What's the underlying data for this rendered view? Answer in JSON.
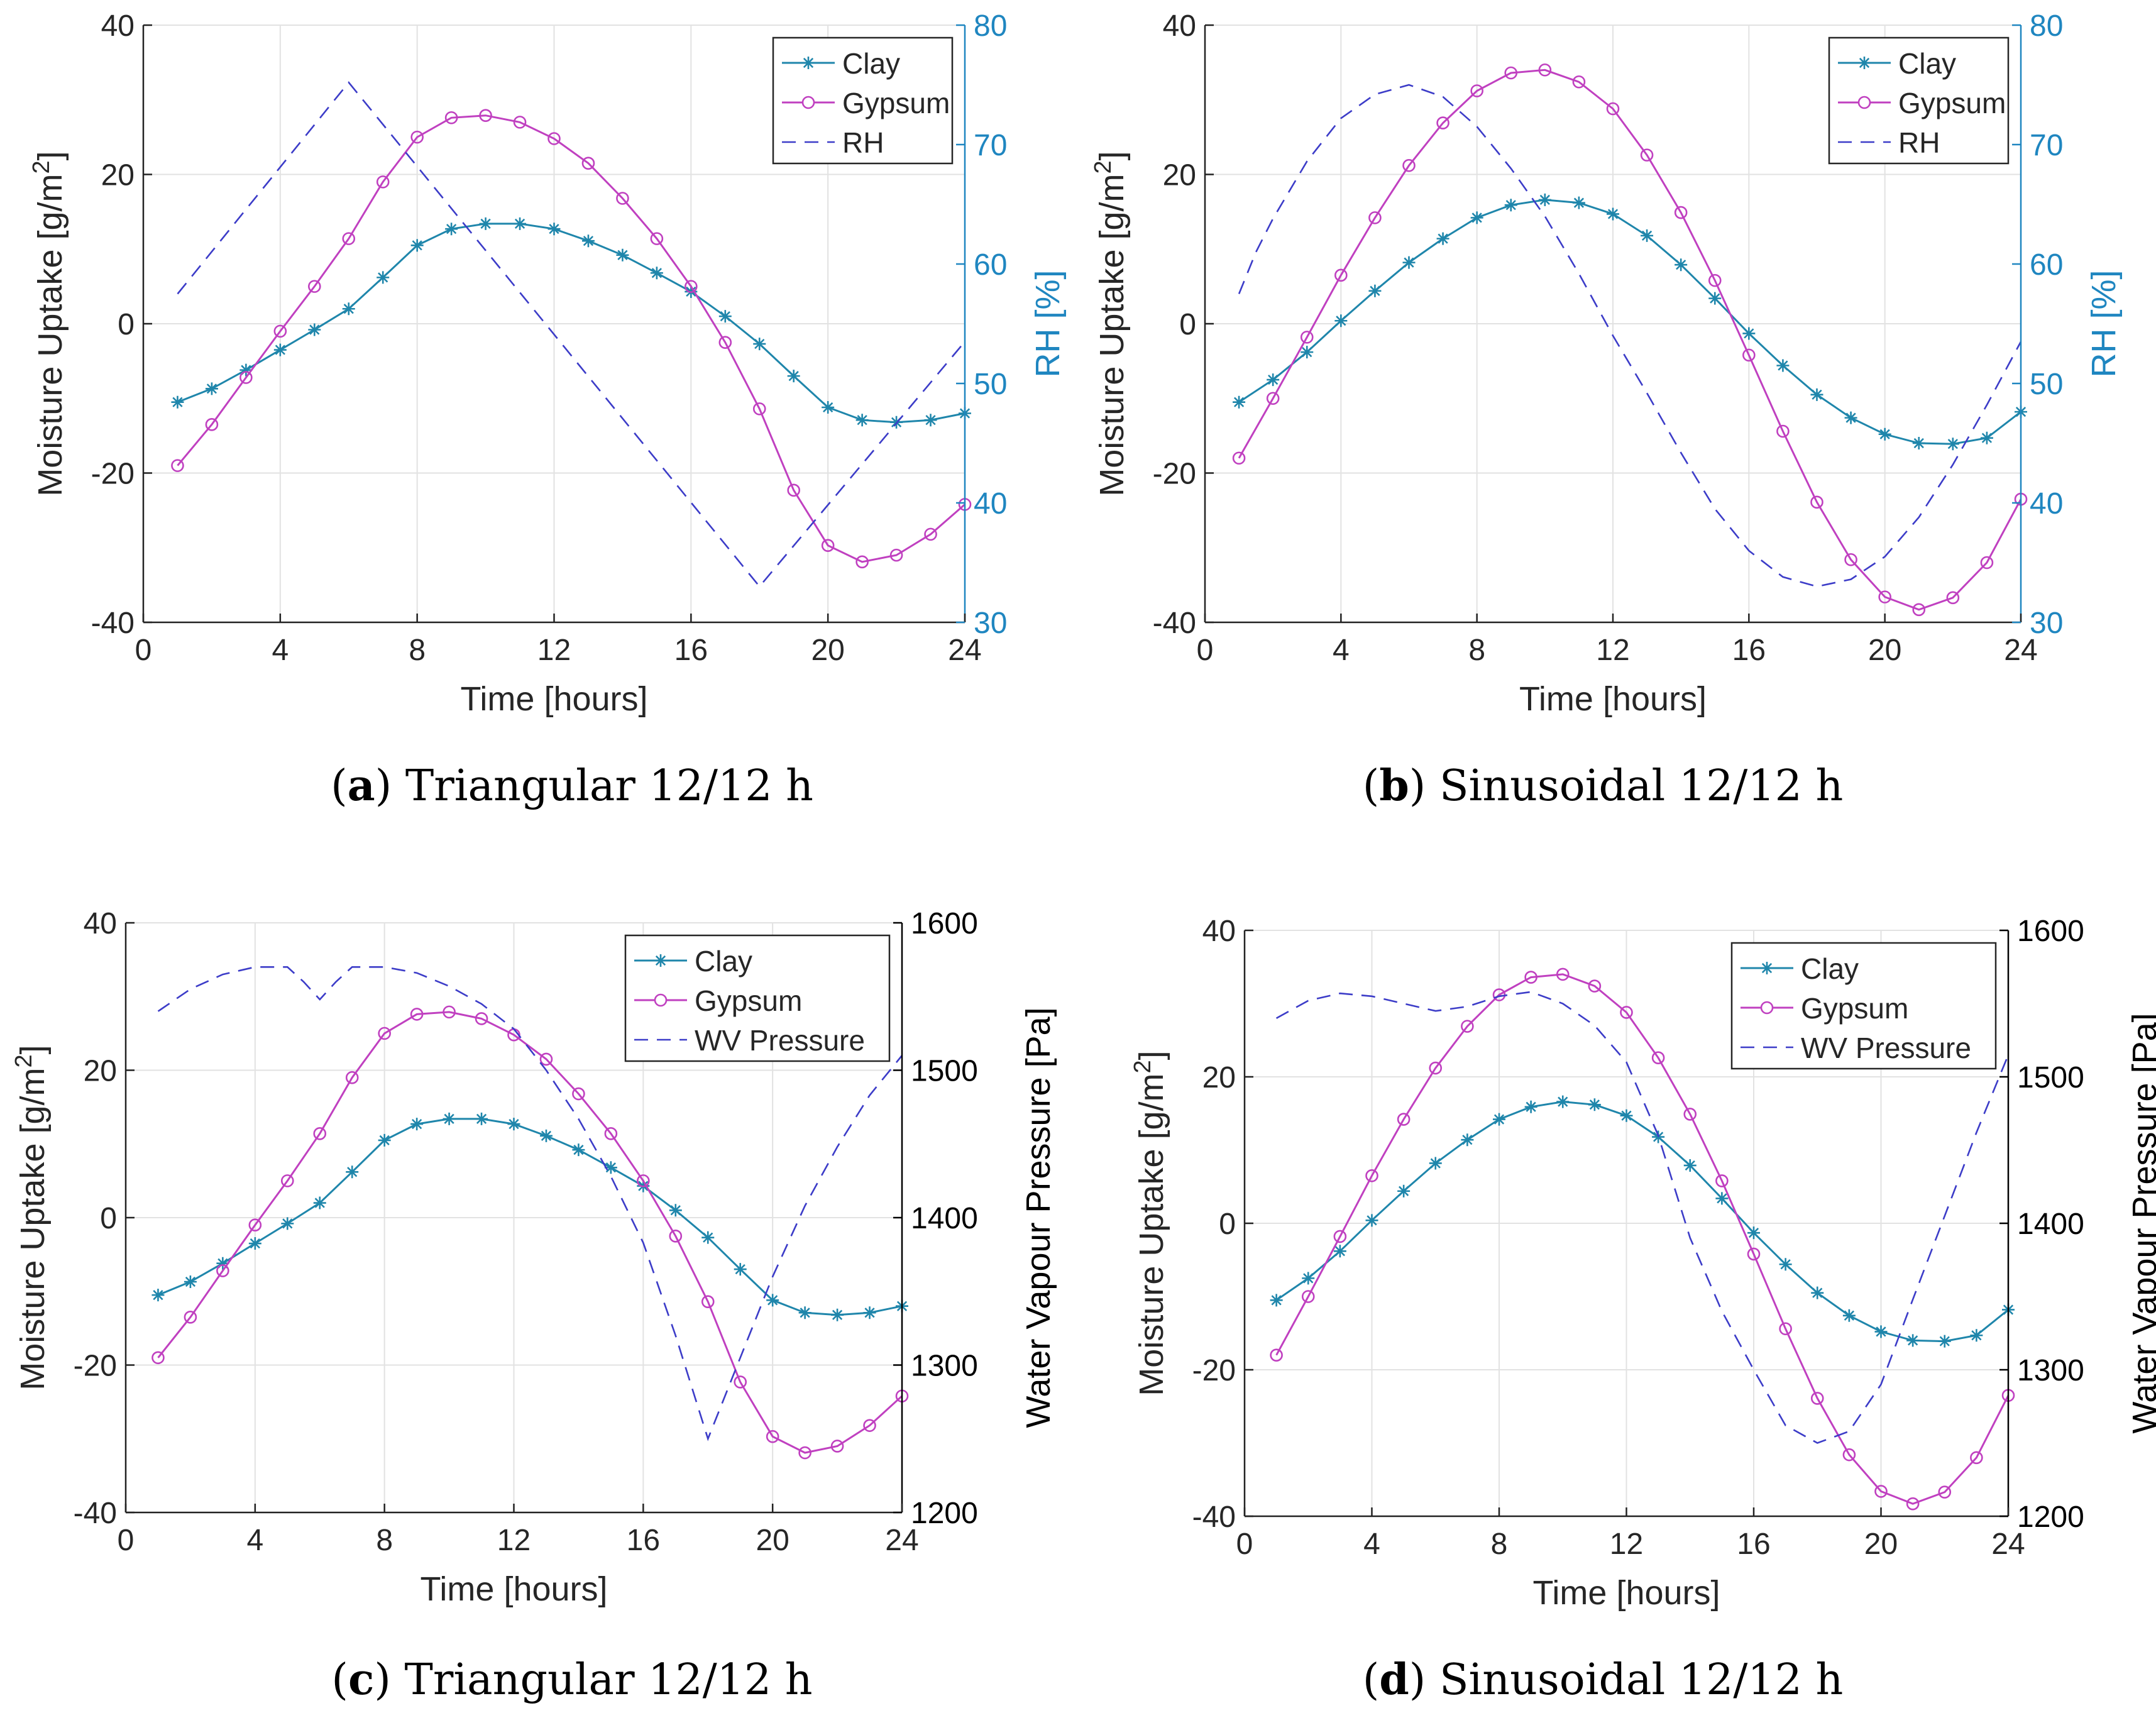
{
  "captions": [
    {
      "letter": "a",
      "prefix": "(",
      "suffix": ") Triangular 12/12 h"
    },
    {
      "letter": "b",
      "prefix": "(",
      "suffix": ") Sinusoidal 12/12 h"
    },
    {
      "letter": "c",
      "prefix": "(",
      "suffix": ") Triangular 12/12 h"
    },
    {
      "letter": "d",
      "prefix": "(",
      "suffix": ") Sinusoidal 12/12 h"
    }
  ],
  "colors": {
    "clay": "#1f86ab",
    "gypsum": "#c040c0",
    "dashed": "#3c3cc8",
    "right_axis_rh": "#1f86c0",
    "right_axis_wv": "#000000",
    "grid": "#e2e2e2"
  },
  "chart_data": [
    {
      "id": "a",
      "type": "line",
      "xlabel": "Time [hours]",
      "ylabel": "Moisture Uptake [g/m",
      "ylabel_sup": "2",
      "ylabel_end": "]",
      "y2label": "RH [%]",
      "xlim": [
        0,
        24
      ],
      "xticks": [
        "0",
        "4",
        "8",
        "12",
        "16",
        "20",
        "24"
      ],
      "ylim": [
        -40,
        40
      ],
      "yticks": [
        "-40",
        "-20",
        "0",
        "20",
        "40"
      ],
      "y2lim": [
        30,
        80
      ],
      "y2ticks": [
        "30",
        "40",
        "50",
        "60",
        "70",
        "80"
      ],
      "legend_position": "top-right",
      "legend": [
        "Clay",
        "Gypsum",
        "RH"
      ],
      "series": [
        {
          "name": "Clay",
          "marker": "star",
          "x": [
            1,
            2,
            3,
            4,
            5,
            6,
            7,
            8,
            9,
            10,
            11,
            12,
            13,
            14,
            15,
            16,
            17,
            18,
            19,
            20,
            21,
            22,
            23,
            24
          ],
          "values": [
            -10.5,
            -8.7,
            -6.2,
            -3.5,
            -0.8,
            2.0,
            6.2,
            10.5,
            12.7,
            13.4,
            13.4,
            12.7,
            11.1,
            9.2,
            6.8,
            4.3,
            1.0,
            -2.7,
            -7.0,
            -11.2,
            -12.9,
            -13.2,
            -12.9,
            -12.0
          ]
        },
        {
          "name": "Gypsum",
          "marker": "circle",
          "x": [
            1,
            2,
            3,
            4,
            5,
            6,
            7,
            8,
            9,
            10,
            11,
            12,
            13,
            14,
            15,
            16,
            17,
            18,
            19,
            20,
            21,
            22,
            23,
            24
          ],
          "values": [
            -19.0,
            -13.5,
            -7.2,
            -1.0,
            5.0,
            11.4,
            19.0,
            25.0,
            27.6,
            27.9,
            27.0,
            24.8,
            21.5,
            16.8,
            11.4,
            5.0,
            -2.5,
            -11.4,
            -22.3,
            -29.7,
            -31.9,
            -31.0,
            -28.2,
            -24.2
          ]
        },
        {
          "name": "RH",
          "axis": "right",
          "dashed": true,
          "x": [
            1,
            6,
            18,
            24
          ],
          "values": [
            57.5,
            75.2,
            33.0,
            53.5
          ]
        }
      ]
    },
    {
      "id": "b",
      "type": "line",
      "xlabel": "Time [hours]",
      "ylabel": "Moisture Uptake [g/m",
      "ylabel_sup": "2",
      "ylabel_end": "]",
      "y2label": "RH [%]",
      "xlim": [
        0,
        24
      ],
      "xticks": [
        "0",
        "4",
        "8",
        "12",
        "16",
        "20",
        "24"
      ],
      "ylim": [
        -40,
        40
      ],
      "yticks": [
        "-40",
        "-20",
        "0",
        "20",
        "40"
      ],
      "y2lim": [
        30,
        80
      ],
      "y2ticks": [
        "30",
        "40",
        "50",
        "60",
        "70",
        "80"
      ],
      "legend_position": "top-right",
      "legend": [
        "Clay",
        "Gypsum",
        "RH"
      ],
      "series": [
        {
          "name": "Clay",
          "marker": "star",
          "x": [
            1,
            2,
            3,
            4,
            5,
            6,
            7,
            8,
            9,
            10,
            11,
            12,
            13,
            14,
            15,
            16,
            17,
            18,
            19,
            20,
            21,
            22,
            23,
            24
          ],
          "values": [
            -10.5,
            -7.5,
            -3.8,
            0.4,
            4.4,
            8.2,
            11.4,
            14.2,
            15.9,
            16.6,
            16.2,
            14.7,
            11.8,
            7.9,
            3.4,
            -1.3,
            -5.6,
            -9.5,
            -12.6,
            -14.8,
            -16.0,
            -16.1,
            -15.3,
            -11.8
          ]
        },
        {
          "name": "Gypsum",
          "marker": "circle",
          "x": [
            1,
            2,
            3,
            4,
            5,
            6,
            7,
            8,
            9,
            10,
            11,
            12,
            13,
            14,
            15,
            16,
            17,
            18,
            19,
            20,
            21,
            22,
            23,
            24
          ],
          "values": [
            -18.0,
            -10.0,
            -1.8,
            6.5,
            14.2,
            21.2,
            26.9,
            31.2,
            33.6,
            34.0,
            32.4,
            28.8,
            22.6,
            14.9,
            5.8,
            -4.2,
            -14.4,
            -23.9,
            -31.6,
            -36.6,
            -38.3,
            -36.7,
            -32.0,
            -23.5
          ]
        },
        {
          "name": "RH",
          "axis": "right",
          "dashed": true,
          "x": [
            1,
            1.5,
            2,
            3,
            4,
            5,
            6,
            7,
            8,
            9,
            10,
            11,
            12,
            13,
            14,
            15,
            16,
            17,
            18,
            19,
            20,
            21,
            22,
            23,
            24
          ],
          "values": [
            57.5,
            61.0,
            63.8,
            68.6,
            72.2,
            74.2,
            75.0,
            74.0,
            71.5,
            68.0,
            64.0,
            59.2,
            54.0,
            49.2,
            44.2,
            39.5,
            36.0,
            33.8,
            33.0,
            33.6,
            35.5,
            38.8,
            43.2,
            48.2,
            53.5
          ]
        }
      ]
    },
    {
      "id": "c",
      "type": "line",
      "xlabel": "Time [hours]",
      "ylabel": "Moisture Uptake [g/m",
      "ylabel_sup": "2",
      "ylabel_end": "]",
      "y2label": "Water Vapour Pressure [Pa]",
      "xlim": [
        0,
        24
      ],
      "xticks": [
        "0",
        "4",
        "8",
        "12",
        "16",
        "20",
        "24"
      ],
      "ylim": [
        -40,
        40
      ],
      "yticks": [
        "-40",
        "-20",
        "0",
        "20",
        "40"
      ],
      "y2lim": [
        1200,
        1600
      ],
      "y2ticks": [
        "1200",
        "1300",
        "1400",
        "1500",
        "1600"
      ],
      "legend_position": "top-right",
      "legend": [
        "Clay",
        "Gypsum",
        "WV Pressure"
      ],
      "series": [
        {
          "name": "Clay",
          "marker": "star",
          "x": [
            1,
            2,
            3,
            4,
            5,
            6,
            7,
            8,
            9,
            10,
            11,
            12,
            13,
            14,
            15,
            16,
            17,
            18,
            19,
            20,
            21,
            22,
            23,
            24
          ],
          "values": [
            -10.5,
            -8.7,
            -6.2,
            -3.5,
            -0.8,
            2.0,
            6.2,
            10.5,
            12.7,
            13.4,
            13.4,
            12.7,
            11.1,
            9.2,
            6.8,
            4.3,
            1.0,
            -2.7,
            -7.0,
            -11.2,
            -12.9,
            -13.2,
            -12.9,
            -12.0
          ]
        },
        {
          "name": "Gypsum",
          "marker": "circle",
          "x": [
            1,
            2,
            3,
            4,
            5,
            6,
            7,
            8,
            9,
            10,
            11,
            12,
            13,
            14,
            15,
            16,
            17,
            18,
            19,
            20,
            21,
            22,
            23,
            24
          ],
          "values": [
            -19.0,
            -13.5,
            -7.2,
            -1.0,
            5.0,
            11.4,
            19.0,
            25.0,
            27.6,
            27.9,
            27.0,
            24.8,
            21.5,
            16.8,
            11.4,
            5.0,
            -2.5,
            -11.4,
            -22.3,
            -29.7,
            -31.9,
            -31.0,
            -28.2,
            -24.2
          ]
        },
        {
          "name": "WV Pressure",
          "axis": "right",
          "dashed": true,
          "x": [
            1,
            2,
            3,
            4,
            5,
            5.5,
            6,
            6.5,
            7,
            8,
            9,
            10,
            11,
            12,
            13,
            14,
            15,
            16,
            17,
            18,
            19,
            20,
            21,
            22,
            23,
            24
          ],
          "values": [
            1540,
            1555,
            1565,
            1570,
            1570,
            1560,
            1548,
            1560,
            1570,
            1570,
            1566,
            1557,
            1545,
            1528,
            1500,
            1467,
            1428,
            1383,
            1320,
            1250,
            1305,
            1360,
            1408,
            1448,
            1483,
            1510
          ]
        }
      ]
    },
    {
      "id": "d",
      "type": "line",
      "xlabel": "Time [hours]",
      "ylabel": "Moisture Uptake [g/m",
      "ylabel_sup": "2",
      "ylabel_end": "]",
      "y2label": "Water Vapour Pressure [Pa]",
      "xlim": [
        0,
        24
      ],
      "xticks": [
        "0",
        "4",
        "8",
        "12",
        "16",
        "20",
        "24"
      ],
      "ylim": [
        -40,
        40
      ],
      "yticks": [
        "-40",
        "-20",
        "0",
        "20",
        "40"
      ],
      "y2lim": [
        1200,
        1600
      ],
      "y2ticks": [
        "1200",
        "1300",
        "1400",
        "1500",
        "1600"
      ],
      "legend_position": "top-right",
      "legend": [
        "Clay",
        "Gypsum",
        "WV Pressure"
      ],
      "series": [
        {
          "name": "Clay",
          "marker": "star",
          "x": [
            1,
            2,
            3,
            4,
            5,
            6,
            7,
            8,
            9,
            10,
            11,
            12,
            13,
            14,
            15,
            16,
            17,
            18,
            19,
            20,
            21,
            22,
            23,
            24
          ],
          "values": [
            -10.5,
            -7.5,
            -3.8,
            0.4,
            4.4,
            8.2,
            11.4,
            14.2,
            15.9,
            16.6,
            16.2,
            14.7,
            11.8,
            7.9,
            3.4,
            -1.3,
            -5.6,
            -9.5,
            -12.6,
            -14.8,
            -16.0,
            -16.1,
            -15.3,
            -11.8
          ]
        },
        {
          "name": "Gypsum",
          "marker": "circle",
          "x": [
            1,
            2,
            3,
            4,
            5,
            6,
            7,
            8,
            9,
            10,
            11,
            12,
            13,
            14,
            15,
            16,
            17,
            18,
            19,
            20,
            21,
            22,
            23,
            24
          ],
          "values": [
            -18.0,
            -10.0,
            -1.8,
            6.5,
            14.2,
            21.2,
            26.9,
            31.2,
            33.6,
            34.0,
            32.4,
            28.8,
            22.6,
            14.9,
            5.8,
            -4.2,
            -14.4,
            -23.9,
            -31.6,
            -36.6,
            -38.3,
            -36.7,
            -32.0,
            -23.5
          ]
        },
        {
          "name": "WV Pressure",
          "axis": "right",
          "dashed": true,
          "x": [
            1,
            2,
            3,
            4,
            5,
            6,
            7,
            8,
            9,
            10,
            11,
            12,
            13,
            14,
            15,
            16,
            17,
            18,
            19,
            20,
            21,
            22,
            23,
            24
          ],
          "values": [
            1540,
            1552,
            1557,
            1555,
            1550,
            1545,
            1548,
            1555,
            1558,
            1550,
            1535,
            1510,
            1460,
            1390,
            1340,
            1300,
            1262,
            1250,
            1258,
            1290,
            1348,
            1405,
            1462,
            1515
          ]
        }
      ]
    }
  ]
}
